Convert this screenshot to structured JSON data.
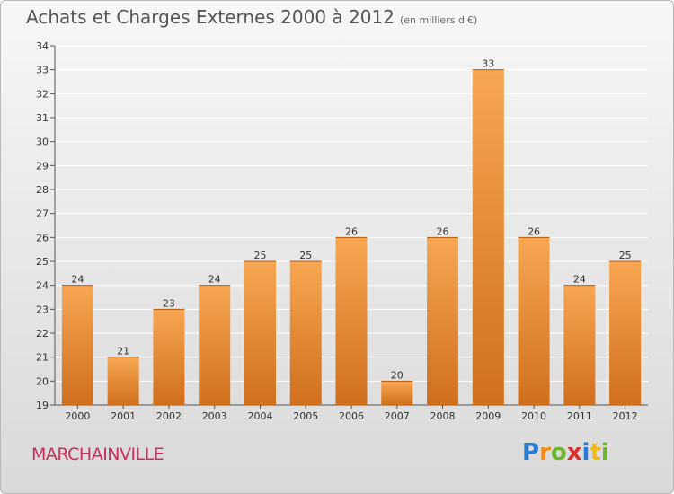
{
  "header": {
    "title": "Achats et Charges Externes 2000 à 2012",
    "subtitle": "(en milliers d'€)"
  },
  "footer": {
    "commune": "MARCHAINVILLE",
    "logo": {
      "text": "Proxiti",
      "letters": [
        {
          "ch": "P",
          "color": "#2b7bd0"
        },
        {
          "ch": "r",
          "color": "#f08c1a"
        },
        {
          "ch": "o",
          "color": "#6cb52d"
        },
        {
          "ch": "x",
          "color": "#d92e2e"
        },
        {
          "ch": "i",
          "color": "#2b7bd0"
        },
        {
          "ch": "t",
          "color": "#f0b81a"
        },
        {
          "ch": "i",
          "color": "#6cb52d"
        }
      ]
    }
  },
  "chart_data": {
    "type": "bar",
    "title": "Achats et Charges Externes 2000 à 2012",
    "subtitle": "(en milliers d'€)",
    "categories": [
      "2000",
      "2001",
      "2002",
      "2003",
      "2004",
      "2005",
      "2006",
      "2007",
      "2008",
      "2009",
      "2010",
      "2011",
      "2012"
    ],
    "values": [
      24,
      21,
      23,
      24,
      25,
      25,
      26,
      20,
      26,
      33,
      26,
      24,
      25
    ],
    "ylim": [
      19,
      34
    ],
    "yticks": [
      19,
      20,
      21,
      22,
      23,
      24,
      25,
      26,
      27,
      28,
      29,
      30,
      31,
      32,
      33,
      34
    ],
    "grid": true,
    "bar_color_top": "#f7a652",
    "bar_color_bottom": "#d06f1c",
    "xlabel": "",
    "ylabel": ""
  }
}
